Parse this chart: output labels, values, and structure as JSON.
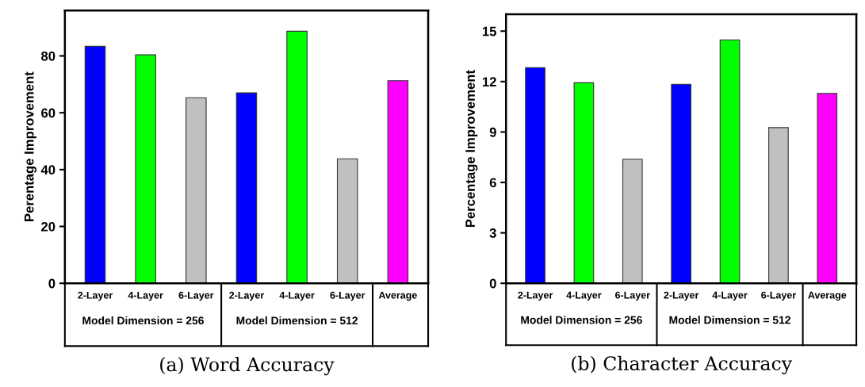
{
  "chart_data": [
    {
      "type": "bar",
      "title": "(a) Word Accuracy",
      "ylabel": "Perentage Improvement",
      "categories": [
        "2-Layer",
        "4-Layer",
        "6-Layer",
        "2-Layer",
        "4-Layer",
        "6-Layer",
        "Average"
      ],
      "values": [
        83.4,
        80.4,
        65.3,
        67.0,
        88.7,
        43.8,
        71.3
      ],
      "colors": [
        "#0000ff",
        "#00ff00",
        "#c0c0c0",
        "#0000ff",
        "#00ff00",
        "#c0c0c0",
        "#ff00ff"
      ],
      "ylim": [
        0,
        96
      ],
      "yticks": [
        0,
        20,
        40,
        60,
        80
      ],
      "grid": false,
      "legend": false,
      "annotations": [
        "Model Dimension = 256",
        "Model Dimension = 512"
      ]
    },
    {
      "type": "bar",
      "title": "(b) Character Accuracy",
      "ylabel": "Percentage Improvement",
      "categories": [
        "2-Layer",
        "4-Layer",
        "6-Layer",
        "2-Layer",
        "4-Layer",
        "6-Layer",
        "Average"
      ],
      "values": [
        12.83,
        11.93,
        7.38,
        11.84,
        14.48,
        9.26,
        11.29
      ],
      "colors": [
        "#0000ff",
        "#00ff00",
        "#c0c0c0",
        "#0000ff",
        "#00ff00",
        "#c0c0c0",
        "#ff00ff"
      ],
      "ylim": [
        0,
        16
      ],
      "yticks": [
        0,
        3,
        6,
        9,
        12,
        15
      ],
      "grid": false,
      "legend": false,
      "annotations": [
        "Model Dimension = 256",
        "Model Dimension = 512"
      ]
    }
  ]
}
